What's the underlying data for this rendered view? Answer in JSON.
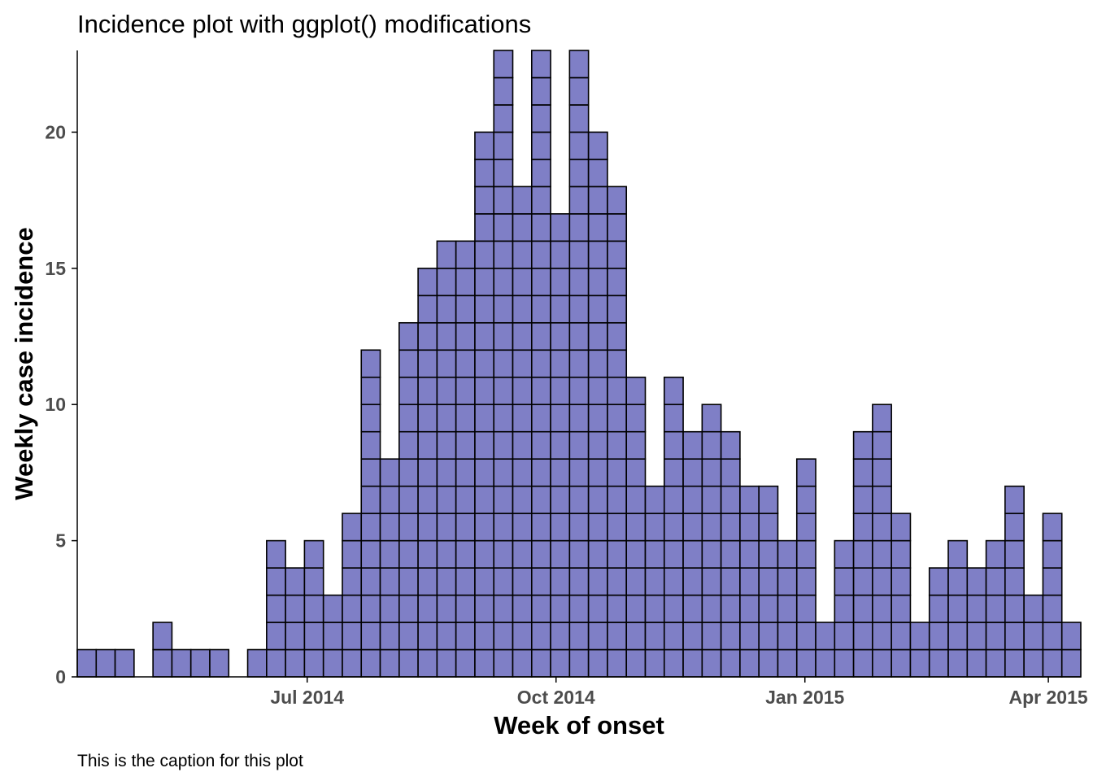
{
  "chart_data": {
    "type": "bar",
    "title": "Incidence plot with ggplot() modifications",
    "caption": "This is the caption for this plot",
    "xlabel": "Week of onset",
    "ylabel": "Weekly case incidence",
    "x_axis_type": "date",
    "first_week_start": "2014-04-07",
    "bin_width_days": 7,
    "ylim": [
      0,
      23
    ],
    "y_ticks": [
      0,
      5,
      10,
      15,
      20
    ],
    "x_ticks": [
      {
        "label": "Jul 2014",
        "date": "2014-07-01"
      },
      {
        "label": "Oct 2014",
        "date": "2014-10-01"
      },
      {
        "label": "Jan 2015",
        "date": "2015-01-01"
      },
      {
        "label": "Apr 2015",
        "date": "2015-04-01"
      }
    ],
    "values": [
      1,
      1,
      1,
      0,
      2,
      1,
      1,
      1,
      0,
      1,
      5,
      4,
      5,
      3,
      6,
      12,
      8,
      13,
      15,
      16,
      16,
      20,
      23,
      18,
      23,
      17,
      23,
      20,
      18,
      11,
      7,
      11,
      9,
      10,
      9,
      7,
      7,
      5,
      8,
      2,
      5,
      9,
      10,
      6,
      2,
      4,
      5,
      4,
      5,
      7,
      3,
      6,
      2
    ],
    "grid": false,
    "legend": "none",
    "stacked_unit_boxes": true
  },
  "colors": {
    "bar_fill": "#7f7fc6",
    "bar_outline": "#000000",
    "axis_line": "#000000",
    "tick_label": "#4d4d4d",
    "background": "#ffffff"
  }
}
